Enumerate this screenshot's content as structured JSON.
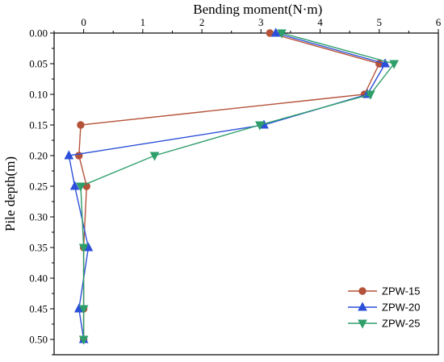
{
  "chart_data": {
    "type": "line",
    "xlabel": "Bending moment(N·m)",
    "ylabel": "Pile depth(m)",
    "x_axis_position": "top",
    "y_axis_inverted": true,
    "xlim": [
      -0.5,
      6
    ],
    "ylim": [
      0,
      0.525
    ],
    "x_ticks": [
      "0",
      "1",
      "2",
      "3",
      "4",
      "5",
      "6"
    ],
    "y_ticks": [
      "0.00",
      "0.05",
      "0.10",
      "0.15",
      "0.20",
      "0.25",
      "0.30",
      "0.35",
      "0.40",
      "0.45",
      "0.50"
    ],
    "grid": false,
    "legend_position": "bottom-right",
    "series": [
      {
        "name": "ZPW-15",
        "color": "#b5523a",
        "marker": "circle",
        "points": [
          [
            3.15,
            0.0
          ],
          [
            5.0,
            0.05
          ],
          [
            4.75,
            0.1
          ],
          [
            -0.05,
            0.15
          ],
          [
            -0.08,
            0.2
          ],
          [
            0.05,
            0.25
          ],
          [
            0.0,
            0.35
          ],
          [
            0.0,
            0.45
          ],
          [
            0.0,
            0.5
          ]
        ]
      },
      {
        "name": "ZPW-20",
        "color": "#2b4fd8",
        "marker": "triangle-up",
        "points": [
          [
            3.25,
            0.0
          ],
          [
            5.1,
            0.05
          ],
          [
            4.8,
            0.1
          ],
          [
            3.05,
            0.15
          ],
          [
            -0.25,
            0.2
          ],
          [
            -0.15,
            0.25
          ],
          [
            0.08,
            0.35
          ],
          [
            -0.08,
            0.45
          ],
          [
            0.0,
            0.5
          ]
        ]
      },
      {
        "name": "ZPW-25",
        "color": "#2e9e6b",
        "marker": "triangle-down",
        "points": [
          [
            3.35,
            0.0
          ],
          [
            5.25,
            0.05
          ],
          [
            4.85,
            0.1
          ],
          [
            2.98,
            0.15
          ],
          [
            1.2,
            0.2
          ],
          [
            -0.05,
            0.25
          ],
          [
            0.0,
            0.35
          ],
          [
            0.0,
            0.45
          ],
          [
            0.0,
            0.5
          ]
        ]
      }
    ]
  }
}
